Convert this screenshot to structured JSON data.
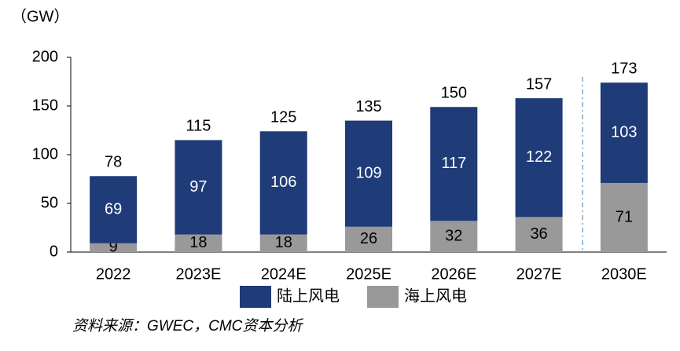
{
  "chart_data": {
    "type": "stacked-bar",
    "unit_label": "（GW）",
    "categories": [
      "2022",
      "2023E",
      "2024E",
      "2025E",
      "2026E",
      "2027E",
      "2030E"
    ],
    "series": [
      {
        "name": "海上风电",
        "color": "#999999",
        "label_color": "#000000",
        "values": [
          9,
          18,
          18,
          26,
          32,
          36,
          71
        ]
      },
      {
        "name": "陆上风电",
        "color": "#1f3b78",
        "label_color": "#ffffff",
        "values": [
          69,
          97,
          106,
          109,
          117,
          122,
          103
        ]
      }
    ],
    "totals": [
      78,
      115,
      125,
      135,
      150,
      157,
      173
    ],
    "ylim": [
      0,
      200
    ],
    "yticks": [
      0,
      50,
      100,
      150,
      200
    ],
    "source": "资料来源：GWEC，CMC资本分析"
  }
}
